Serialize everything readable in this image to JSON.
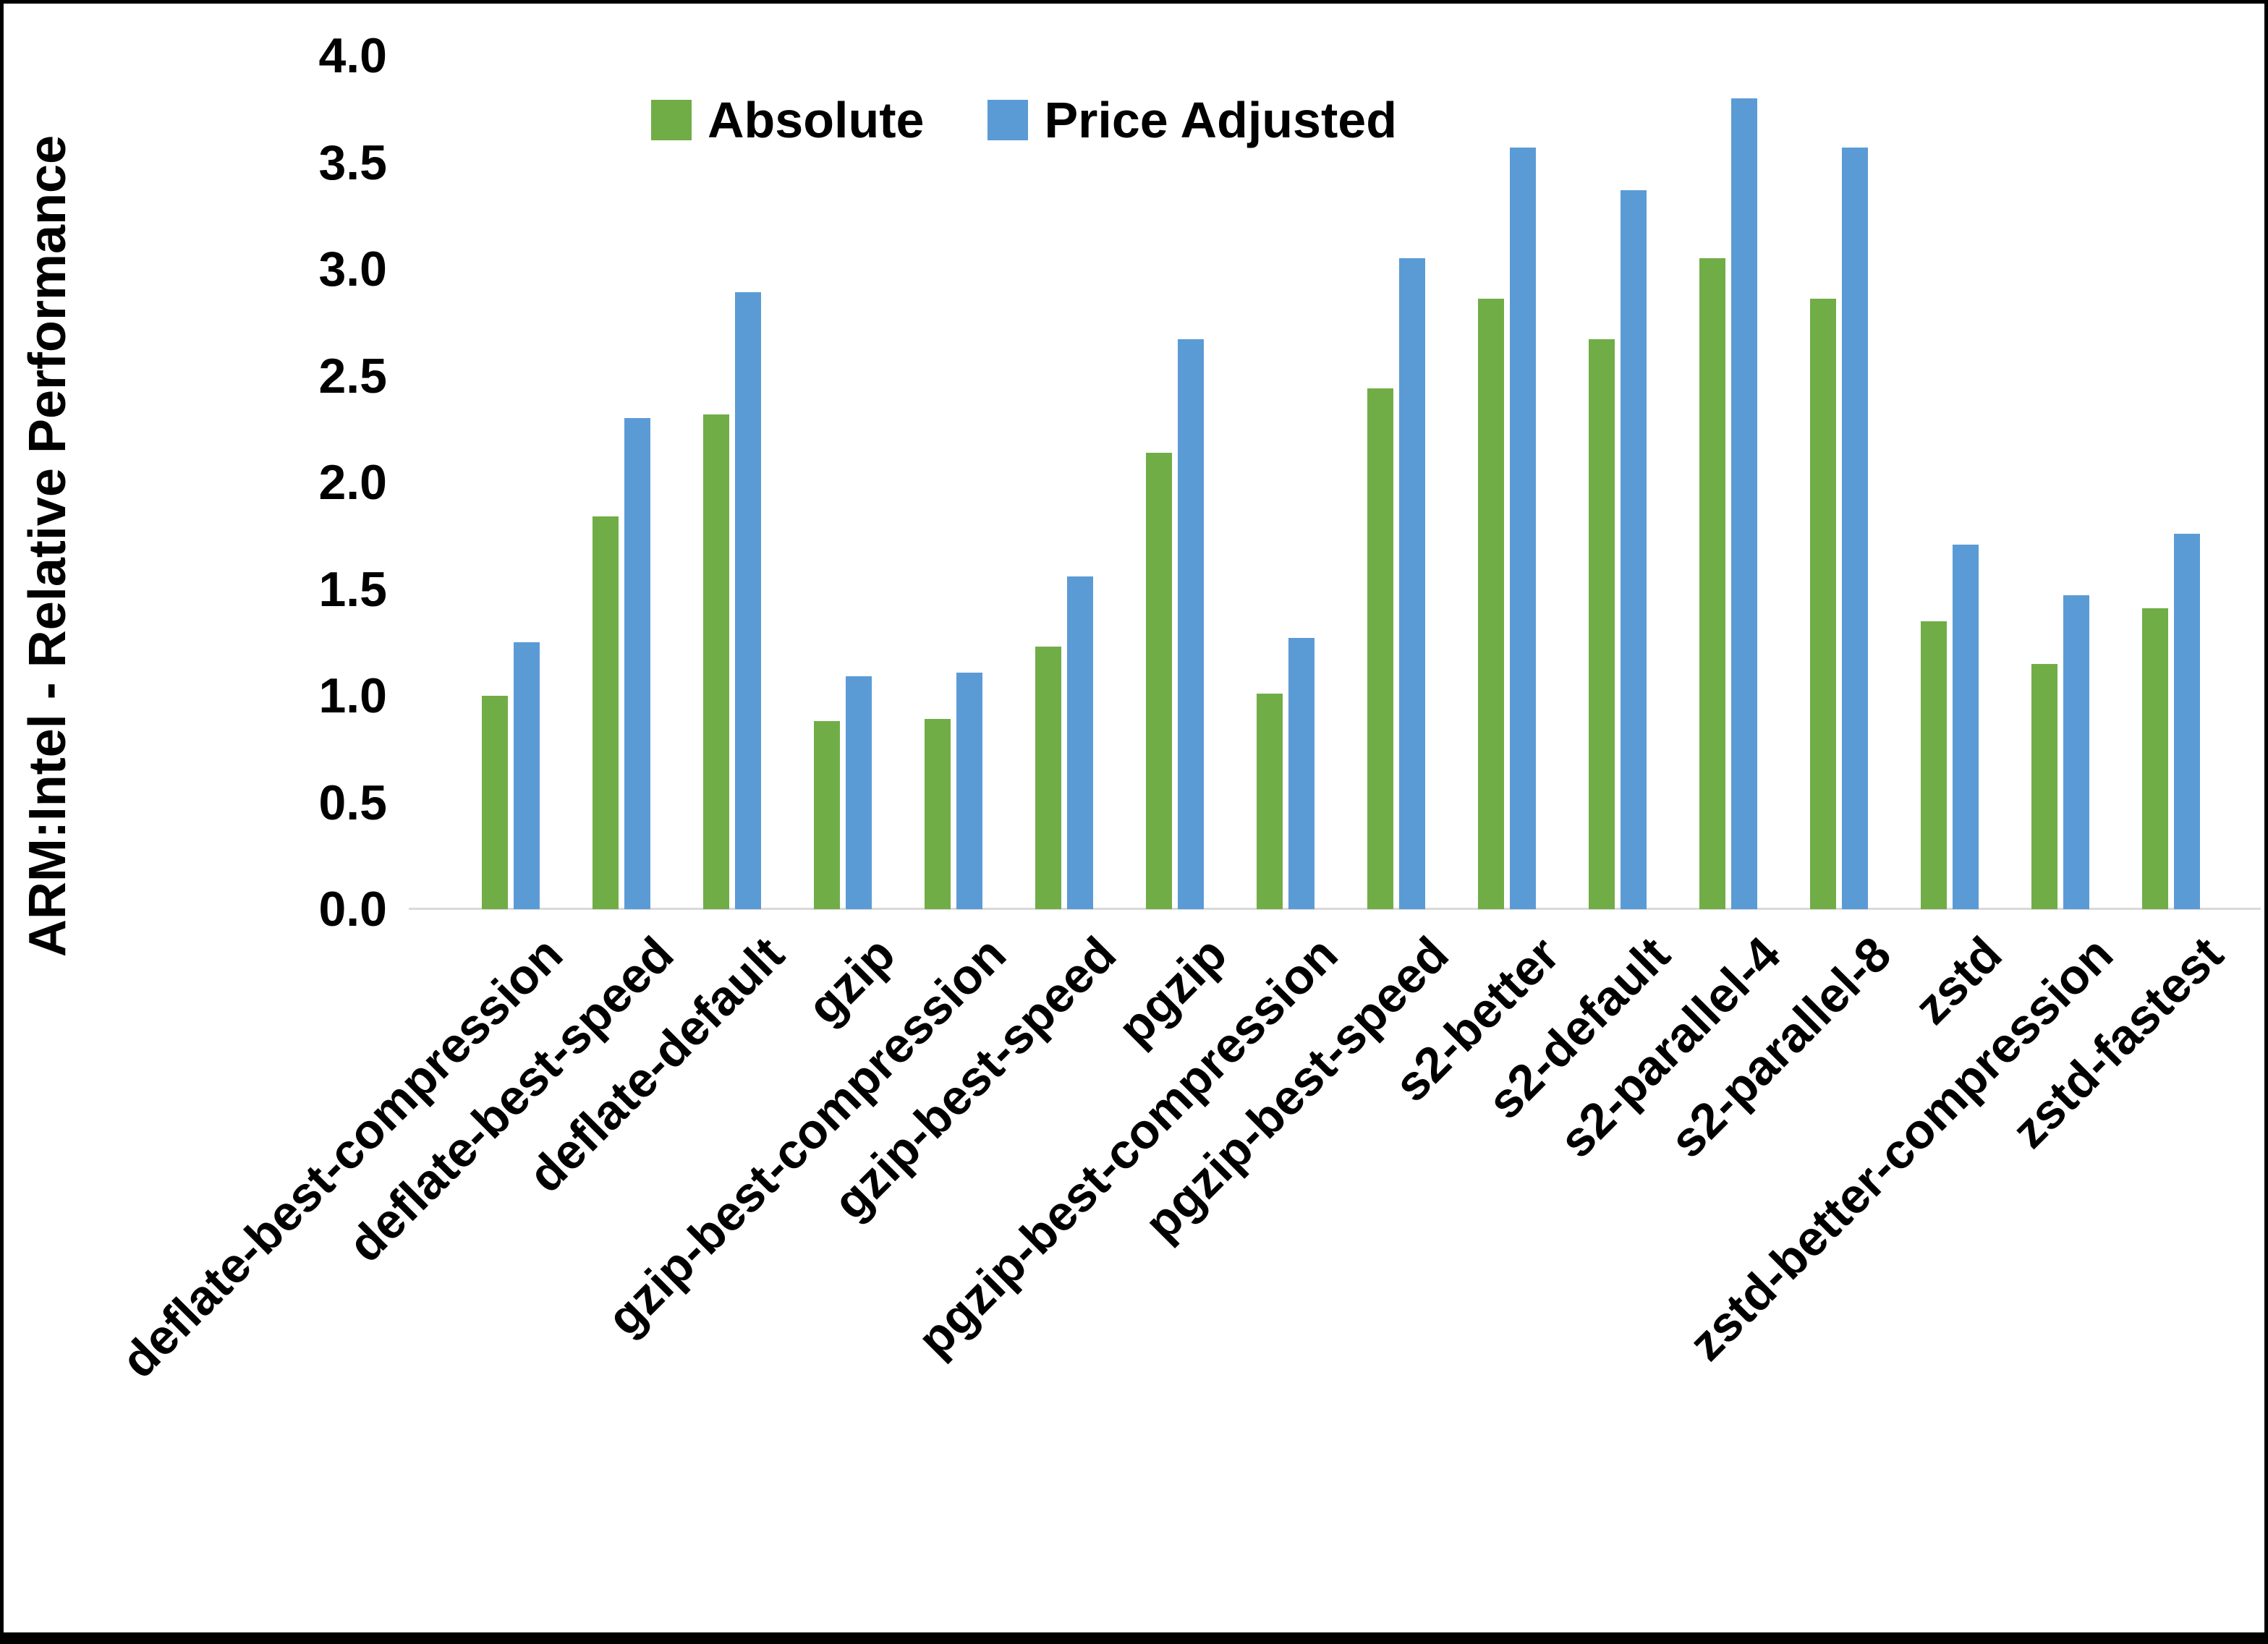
{
  "chart_data": {
    "type": "bar",
    "title": "",
    "xlabel": "",
    "ylabel": "ARM:Intel - Relative Performance",
    "ylim": [
      0.0,
      4.0
    ],
    "ytick_step": 0.5,
    "grid": false,
    "legend_position": "top-center",
    "categories": [
      "deflate-best-compression",
      "deflate-best-speed",
      "deflate-default",
      "gzip",
      "gzip-best-compression",
      "gzip-best-speed",
      "pgzip",
      "pgzip-best-compression",
      "pgzip-best-speed",
      "s2-better",
      "s2-default",
      "s2-parallel-4",
      "s2-parallel-8",
      "zstd",
      "zstd-better-compression",
      "zstd-fastest"
    ],
    "series": [
      {
        "name": "Absolute",
        "color": "#70AD47",
        "values": [
          1.0,
          1.84,
          2.32,
          0.88,
          0.89,
          1.23,
          2.14,
          1.01,
          2.44,
          2.86,
          2.67,
          3.05,
          2.86,
          1.35,
          1.15,
          1.41
        ]
      },
      {
        "name": "Price Adjusted",
        "color": "#5B9BD5",
        "values": [
          1.25,
          2.3,
          2.89,
          1.09,
          1.11,
          1.56,
          2.67,
          1.27,
          3.05,
          3.57,
          3.37,
          3.8,
          3.57,
          1.71,
          1.47,
          1.76
        ]
      }
    ]
  },
  "y_axis": {
    "title": "ARM:Intel - Relative Performance",
    "ticks": [
      "0.0",
      "0.5",
      "1.0",
      "1.5",
      "2.0",
      "2.5",
      "3.0",
      "3.5",
      "4.0"
    ]
  },
  "legend": {
    "items": [
      {
        "label": "Absolute",
        "color": "#70AD47"
      },
      {
        "label": "Price Adjusted",
        "color": "#5B9BD5"
      }
    ]
  },
  "colors": {
    "axis_line": "#d9d9d9",
    "text": "#000000",
    "background": "#ffffff"
  }
}
